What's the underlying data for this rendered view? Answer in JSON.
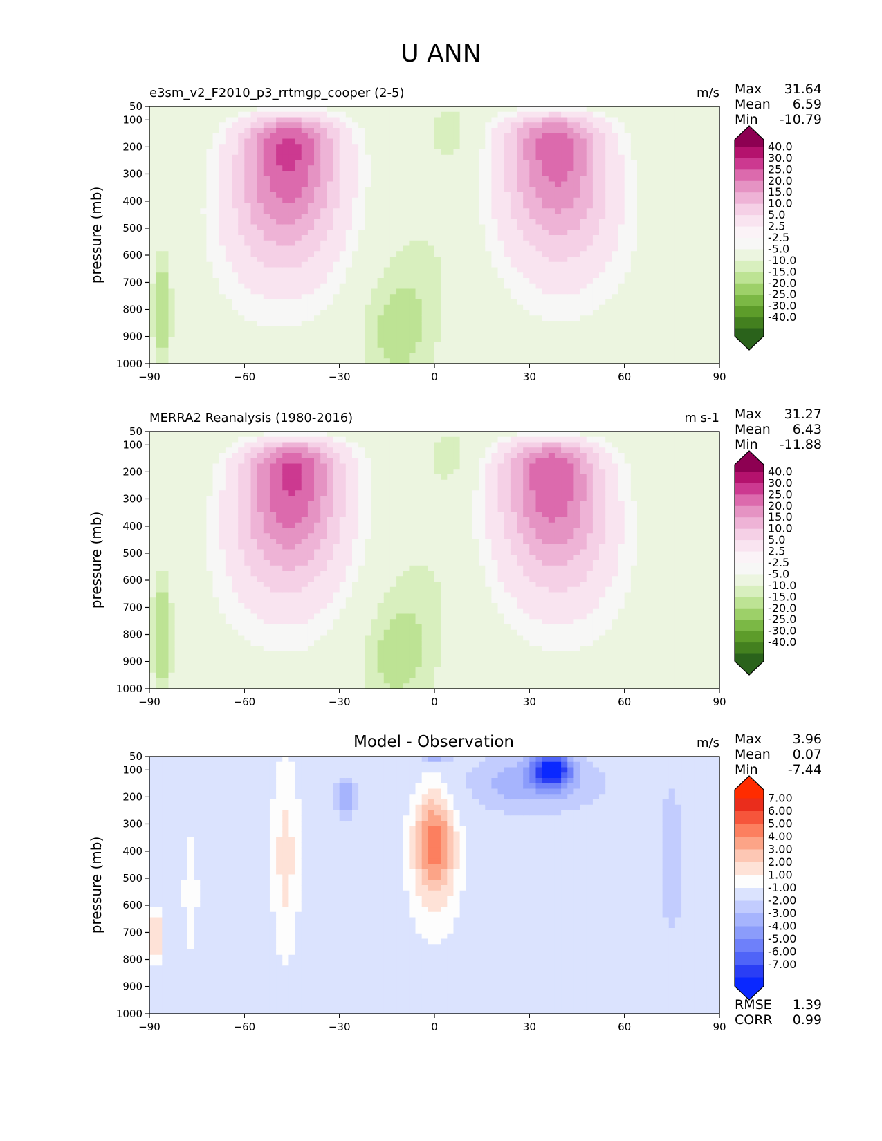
{
  "figure": {
    "title": "U ANN"
  },
  "colors": {
    "wind_fills": [
      "#fdfdfd",
      "#f7f7f6",
      "#f9e4f0",
      "#f5d0e6",
      "#eeb3d6",
      "#e593c3",
      "#dc6aad",
      "#cc3990",
      "#b4126d",
      "#8d0052"
    ],
    "wind_neg_fills": [
      "#ecf5e0",
      "#d8efbe",
      "#bde394",
      "#9dd069",
      "#7bb845",
      "#5d9c2a",
      "#43801f",
      "#2a621b"
    ],
    "diff_pos": [
      "#fee2d7",
      "#fdc7b4",
      "#fca487",
      "#fc7f5f",
      "#f6553b",
      "#ea2d1c",
      "#ff2c00"
    ],
    "diff_neg": [
      "#dbe3fe",
      "#c2ccfe",
      "#a6b4fd",
      "#8b9cfb",
      "#6e80fa",
      "#4f64f8",
      "#2a3ef5",
      "#0a28ff"
    ]
  },
  "chart_data": [
    {
      "type": "contour",
      "id": "model",
      "subtitle": "e3sm_v2_F2010_p3_rrtmgp_cooper (2-5)",
      "units": "m/s",
      "ylabel": "pressure (mb)",
      "xlim": [
        -90,
        90
      ],
      "ylim": [
        50,
        1000
      ],
      "xticks": [
        "−90",
        "−60",
        "−30",
        "0",
        "30",
        "60",
        "90"
      ],
      "yticks": [
        "50",
        "100",
        "200",
        "300",
        "400",
        "500",
        "600",
        "700",
        "800",
        "900",
        "1000"
      ],
      "stats": [
        {
          "label": "Max",
          "value": "31.64"
        },
        {
          "label": "Mean",
          "value": "6.59"
        },
        {
          "label": "Min",
          "value": "-10.79"
        }
      ],
      "colorbar_levels": [
        "40.0",
        "30.0",
        "25.0",
        "20.0",
        "15.0",
        "10.0",
        "5.0",
        "2.5",
        "-2.5",
        "-5.0",
        "-10.0",
        "-15.0",
        "-20.0",
        "-25.0",
        "-30.0",
        "-40.0"
      ],
      "jets": [
        {
          "lat": -46,
          "p": 200,
          "max": 31.6
        },
        {
          "lat": 38,
          "p": 190,
          "max": 28.5
        }
      ]
    },
    {
      "type": "contour",
      "id": "obs",
      "subtitle": "MERRA2 Reanalysis (1980-2016)",
      "units": "m s-1",
      "ylabel": "pressure (mb)",
      "xlim": [
        -90,
        90
      ],
      "ylim": [
        50,
        1000
      ],
      "xticks": [
        "−90",
        "−60",
        "−30",
        "0",
        "30",
        "60",
        "90"
      ],
      "yticks": [
        "50",
        "100",
        "200",
        "300",
        "400",
        "500",
        "600",
        "700",
        "800",
        "900",
        "1000"
      ],
      "stats": [
        {
          "label": "Max",
          "value": "31.27"
        },
        {
          "label": "Mean",
          "value": "6.43"
        },
        {
          "label": "Min",
          "value": "-11.88"
        }
      ],
      "colorbar_levels": [
        "40.0",
        "30.0",
        "25.0",
        "20.0",
        "15.0",
        "10.0",
        "5.0",
        "2.5",
        "-2.5",
        "-5.0",
        "-10.0",
        "-15.0",
        "-20.0",
        "-25.0",
        "-30.0",
        "-40.0"
      ],
      "jets": [
        {
          "lat": -45,
          "p": 200,
          "max": 31.3
        },
        {
          "lat": 37,
          "p": 200,
          "max": 30.0
        }
      ]
    },
    {
      "type": "contour",
      "id": "diff",
      "subtitle": "Model - Observation",
      "units": "m/s",
      "ylabel": "pressure (mb)",
      "xlim": [
        -90,
        90
      ],
      "ylim": [
        50,
        1000
      ],
      "xticks": [
        "−90",
        "−60",
        "−30",
        "0",
        "30",
        "60",
        "90"
      ],
      "yticks": [
        "50",
        "100",
        "200",
        "300",
        "400",
        "500",
        "600",
        "700",
        "800",
        "900",
        "1000"
      ],
      "stats": [
        {
          "label": "Max",
          "value": "3.96"
        },
        {
          "label": "Mean",
          "value": "0.07"
        },
        {
          "label": "Min",
          "value": "-7.44"
        }
      ],
      "colorbar_levels": [
        "7.00",
        "6.00",
        "5.00",
        "4.00",
        "3.00",
        "2.00",
        "1.00",
        "-1.00",
        "-2.00",
        "-3.00",
        "-4.00",
        "-5.00",
        "-6.00",
        "-7.00"
      ],
      "metrics": [
        {
          "label": "RMSE",
          "value": "1.39"
        },
        {
          "label": "CORR",
          "value": "0.99"
        }
      ]
    }
  ]
}
